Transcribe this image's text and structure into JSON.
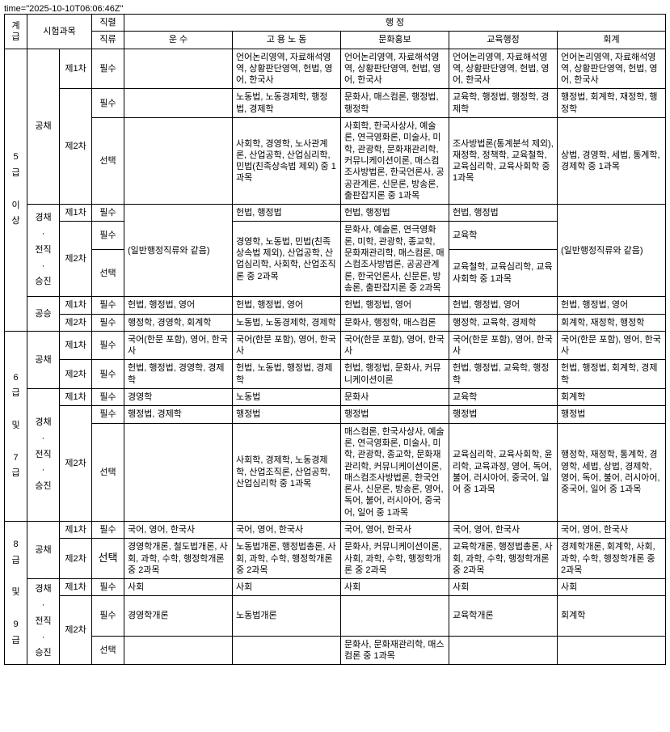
{
  "header": {
    "grade": "계급",
    "subjects": "시험과목",
    "series": "직렬",
    "category": "직류",
    "admin": "행 정",
    "cols": [
      "운 수",
      "고 용 노 동",
      "문화홍보",
      "교육행정",
      "회계"
    ]
  },
  "g5": {
    "label": "5\n급\n\n이\n상",
    "gongchae": "공채",
    "gc_r1_exam": "제1차",
    "gc_r1_type": "필수",
    "gc_r1": [
      "",
      "언어논리영역, 자료해석영역, 상황판단영역, 헌법, 영어, 한국사",
      "언어논리영역, 자료해석영역, 상황판단영역, 헌법, 영어, 한국사",
      "언어논리영역, 자료해석영역, 상황판단영역, 헌법, 영어, 한국사",
      "언어논리영역, 자료해석영역, 상황판단영역, 헌법, 영어, 한국사"
    ],
    "gc_r2_exam": "제2차",
    "gc_r2_type1": "필수",
    "gc_r2a": [
      "",
      "노동법, 노동경제학, 행정법, 경제학",
      "문화사, 매스컴론, 행정법, 행정학",
      "교육학, 행정법, 행정학, 경제학",
      "행정법, 회계학, 재정학, 행정학"
    ],
    "gc_r2_type2": "선택",
    "gc_r2b": [
      "",
      "사회학, 경영학, 노사관계론, 산업공학, 산업심리학, 민법(친족상속법 제외) 중 1과목",
      "사회학, 한국사상사, 예술론, 연극영화론, 미술사, 미학, 관광학, 문화재관리학, 커뮤니케이션이론, 매스컴조사방법론, 한국언론사, 공공관계론, 신문론, 방송론, 출판잡지론 중 1과목",
      "조사방법론(통계분석 제외), 재정학, 정책학, 교육철학, 교육심리학, 교육사회학 중 1과목",
      "상법, 경영학, 세법, 통계학, 경제학 중 1과목"
    ],
    "gyeongchae": "경채\n·\n전직\n·\n승진",
    "kc_r1_exam": "제1차",
    "kc_r1_type": "필수",
    "kc_r1": [
      "헌법, 행정법",
      "헌법, 행정법",
      "헌법, 행정법",
      "(일반행정직류와 같음)"
    ],
    "kc_span": "(일반행정직류와 같음)",
    "kc_r2_exam": "제2차",
    "kc_r2_type1": "필수",
    "kc_r2a": [
      "경영학, 노동법, 민법(친족상속법 제외), 산업공학, 산업심리학, 사회학, 산업조직론 중 2과목",
      "",
      "교육학",
      ""
    ],
    "kc_r2_type2": "선택",
    "kc_r2b": [
      "",
      "문화사, 예술론, 연극영화론, 미학, 관광학, 종교학, 문화재관리학, 매스컴론, 매스컴조사방법론, 공공관계론, 한국언론사, 신문론, 방송론, 출판잡지론 중 2과목",
      "교육철학, 교육심리학, 교육사회학 중 1과목",
      ""
    ],
    "gongseung": "공승",
    "gs_r1_exam": "제1차",
    "gs_r1_type": "필수",
    "gs_r1": [
      "헌법, 행정법, 영어",
      "헌법, 행정법, 영어",
      "헌법, 행정법, 영어",
      "헌법, 행정법, 영어",
      "헌법, 행정법, 영어"
    ],
    "gs_r2_exam": "제2차",
    "gs_r2_type": "필수",
    "gs_r2": [
      "행정학, 경영학, 회계학",
      "노동법, 노동경제학, 경제학",
      "문화사, 행정학, 매스컴론",
      "행정학, 교육학, 경제학",
      "회계학, 재정학, 행정학"
    ]
  },
  "g6": {
    "label": "6\n급\n\n및\n\n7\n급",
    "gongchae": "공채",
    "gc_r1_exam": "제1차",
    "gc_r1_type": "필수",
    "gc_r1": [
      "국어(한문 포함), 영어, 한국사",
      "국어(한문 포함), 영어, 한국사",
      "국어(한문 포함), 영어, 한국사",
      "국어(한문 포함), 영어, 한국사",
      "국어(한문 포함), 영어, 한국사"
    ],
    "gc_r2_exam": "제2차",
    "gc_r2_type": "필수",
    "gc_r2": [
      "헌법, 행정법, 경영학, 경제학",
      "헌법, 노동법, 행정법, 경제학",
      "헌법, 행정법, 문화사, 커뮤니케이션이론",
      "헌법, 행정법, 교육학, 행정학",
      "헌법, 행정법, 회계학, 경제학"
    ],
    "gyeongchae": "경채\n·\n전직\n·\n승진",
    "kc_r1_exam": "제1차",
    "kc_r1_type": "필수",
    "kc_r1": [
      "경영학",
      "노동법",
      "문화사",
      "교육학",
      "회계학"
    ],
    "kc_r2_exam": "제2차",
    "kc_r2_type1": "필수",
    "kc_r2a": [
      "행정법, 경제학",
      "행정법",
      "행정법",
      "행정법",
      "행정법"
    ],
    "kc_r2_type2": "선택",
    "kc_r2b": [
      "",
      "사회학, 경제학, 노동경제학, 산업조직론, 산업공학, 산업심리학 중 1과목",
      "매스컴론, 한국사상사, 예술론, 연극영화론, 미술사, 미학, 관광학, 종교학, 문화재관리학, 커뮤니케이션이론, 매스컴조사방법론, 한국언론사, 신문론, 방송론, 영어, 독어, 불어, 러시아어, 중국어, 일어 중 1과목",
      "교육심리학, 교육사회학, 윤리학, 교육과정, 영어, 독어, 불어, 러시아어, 중국어, 일어 중 1과목",
      "행정학, 재정학, 통계학, 경영학, 세법, 상법, 경제학, 영어, 독어, 불어, 러시아어, 중국어, 일어 중 1과목"
    ]
  },
  "g8": {
    "label": "8\n급\n\n및\n\n9\n급",
    "gongchae": "공채",
    "gc_r1_exam": "제1차",
    "gc_r1_type": "필수",
    "gc_r1": [
      "국어, 영어, 한국사",
      "국어, 영어, 한국사",
      "국어, 영어, 한국사",
      "국어, 영어, 한국사",
      "국어, 영어, 한국사"
    ],
    "gc_r2_exam": "제2차",
    "gc_r2_type": "선택",
    "gc_r2": [
      "경영학개론, 철도법개론, 사회, 과학, 수학, 행정학개론 중 2과목",
      "노동법개론, 행정법총론, 사회, 과학, 수학, 행정학개론 중 2과목",
      "문화사, 커뮤니케이션이론, 사회, 과학, 수학, 행정학개론 중 2과목",
      "교육학개론, 행정법총론, 사회, 과학, 수학, 행정학개론 중 2과목",
      "경제학개론, 회계학, 사회, 과학, 수학, 행정학개론 중 2과목"
    ],
    "gyeongchae": "경채\n·\n전직\n·\n승진",
    "kc_r1_exam": "제1차",
    "kc_r1_type": "필수",
    "kc_r1": [
      "사회",
      "사회",
      "사회",
      "사회",
      "사회"
    ],
    "kc_r2_exam": "제2차",
    "kc_r2_type1": "필수",
    "kc_r2a": [
      "경영학개론",
      "노동법개론",
      "",
      "교육학개론",
      "회계학"
    ],
    "kc_r2_type2": "선택",
    "kc_r2b": [
      "",
      "",
      "문화사, 문화재관리학, 매스컴론 중 1과목",
      "",
      ""
    ]
  }
}
